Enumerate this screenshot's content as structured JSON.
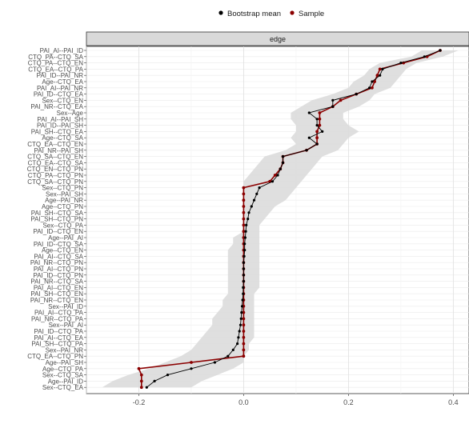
{
  "chart_data": {
    "type": "line",
    "facet_label": "edge",
    "xlim": [
      -0.3,
      0.43
    ],
    "x_ticks": [
      -0.2,
      0.0,
      0.2,
      0.4
    ],
    "x_tick_labels": [
      "-0.2",
      "0.0",
      "0.2",
      "0.4"
    ],
    "grid": true,
    "legend_position": "top",
    "series": [
      {
        "name": "Bootstrap mean",
        "color": "#000000"
      },
      {
        "name": "Sample",
        "color": "#8b0000"
      }
    ],
    "band_color": "#d9d9d9",
    "categories": [
      "PAI_AI--PAI_ID",
      "CTQ_PA--CTQ_SA",
      "CTQ_PA--CTQ_EN",
      "CTQ_EA--CTQ_PA",
      "PAI_ID--PAI_NR",
      "Age--CTQ_EA",
      "PAI_AI--PAI_NR",
      "PAI_ID--CTQ_EA",
      "Sex--CTQ_EN",
      "PAI_NR--CTQ_EA",
      "Sex--Age",
      "PAI_AI--PAI_SH",
      "PAI_ID--PAI_SH",
      "PAI_SH--CTQ_EA",
      "Age--CTQ_SA",
      "CTQ_EA--CTQ_EN",
      "PAI_NR--PAI_SH",
      "CTQ_SA--CTQ_EN",
      "CTQ_EA--CTQ_SA",
      "CTQ_EN--CTQ_PN",
      "CTQ_PA--CTQ_PN",
      "CTQ_SA--CTQ_PN",
      "Sex--CTQ_PN",
      "Sex--PAI_SH",
      "Age--PAI_NR",
      "Age--CTQ_PN",
      "PAI_SH--CTQ_SA",
      "PAI_SH--CTQ_PN",
      "Sex--CTQ_PA",
      "PAI_ID--CTQ_EN",
      "Age--PAI_AI",
      "PAI_ID--CTQ_SA",
      "Age--CTQ_EN",
      "PAI_AI--CTQ_SA",
      "PAI_NR--CTQ_PN",
      "PAI_AI--CTQ_PN",
      "PAI_ID--CTQ_PN",
      "PAI_NR--CTQ_SA",
      "PAI_AI--CTQ_EN",
      "PAI_SH--CTQ_EN",
      "PAI_NR--CTQ_EN",
      "Sex--PAI_ID",
      "PAI_AI--CTQ_PA",
      "PAI_NR--CTQ_PA",
      "Sex--PAI_AI",
      "PAI_ID--CTQ_PA",
      "PAI_AI--CTQ_EA",
      "PAI_SH--CTQ_PA",
      "Sex--PAI_NR",
      "CTQ_EA--CTQ_PN",
      "Age--PAI_SH",
      "Age--CTQ_PA",
      "Sex--CTQ_SA",
      "Age--PAI_ID",
      "Sex--CTQ_EA"
    ],
    "sample": [
      0.375,
      0.35,
      0.305,
      0.26,
      0.255,
      0.25,
      0.245,
      0.215,
      0.185,
      0.17,
      0.145,
      0.145,
      0.145,
      0.14,
      0.14,
      0.14,
      0.12,
      0.075,
      0.075,
      0.07,
      0.06,
      0.05,
      0.0,
      0.0,
      0.0,
      0.0,
      0.0,
      0.0,
      0.0,
      0.0,
      0.0,
      0.0,
      0.0,
      0.0,
      0.0,
      0.0,
      0.0,
      0.0,
      0.0,
      0.0,
      0.0,
      0.0,
      0.0,
      0.0,
      0.0,
      0.0,
      0.0,
      0.0,
      0.0,
      0.0,
      -0.1,
      -0.2,
      -0.195,
      -0.195,
      -0.195
    ],
    "bootstrap_mean": [
      0.375,
      0.345,
      0.3,
      0.265,
      0.26,
      0.245,
      0.24,
      0.215,
      0.17,
      0.17,
      0.125,
      0.14,
      0.14,
      0.15,
      0.125,
      0.14,
      0.12,
      0.075,
      0.075,
      0.07,
      0.065,
      0.055,
      0.03,
      0.025,
      0.02,
      0.015,
      0.01,
      0.008,
      0.005,
      0.004,
      0.003,
      0.002,
      0.002,
      0.001,
      0.0,
      0.0,
      0.0,
      0.0,
      -0.001,
      -0.001,
      -0.002,
      -0.003,
      -0.004,
      -0.005,
      -0.006,
      -0.008,
      -0.01,
      -0.012,
      -0.02,
      -0.03,
      -0.055,
      -0.1,
      -0.145,
      -0.17,
      -0.185
    ],
    "band_lower": [
      0.34,
      0.32,
      0.26,
      0.24,
      0.23,
      0.21,
      0.2,
      0.17,
      0.13,
      0.11,
      0.09,
      0.09,
      0.1,
      0.1,
      0.09,
      0.1,
      0.08,
      0.04,
      0.03,
      0.02,
      0.01,
      0.0,
      0.0,
      0.0,
      0.0,
      0.0,
      0.0,
      0.0,
      0.0,
      0.0,
      -0.02,
      -0.02,
      -0.03,
      -0.03,
      -0.03,
      -0.03,
      -0.03,
      -0.03,
      -0.03,
      -0.03,
      -0.04,
      -0.04,
      -0.05,
      -0.06,
      -0.06,
      -0.07,
      -0.08,
      -0.09,
      -0.1,
      -0.12,
      -0.15,
      -0.18,
      -0.22,
      -0.25,
      -0.27
    ],
    "band_upper": [
      0.41,
      0.38,
      0.33,
      0.31,
      0.3,
      0.29,
      0.28,
      0.25,
      0.24,
      0.22,
      0.19,
      0.19,
      0.2,
      0.22,
      0.2,
      0.19,
      0.18,
      0.15,
      0.14,
      0.13,
      0.12,
      0.11,
      0.1,
      0.09,
      0.08,
      0.06,
      0.05,
      0.04,
      0.03,
      0.03,
      0.03,
      0.03,
      0.03,
      0.03,
      0.03,
      0.03,
      0.03,
      0.03,
      0.03,
      0.02,
      0.02,
      0.02,
      0.02,
      0.02,
      0.02,
      0.02,
      0.02,
      0.01,
      0.01,
      0.0,
      0.0,
      -0.02,
      -0.05,
      -0.08,
      -0.1
    ]
  }
}
